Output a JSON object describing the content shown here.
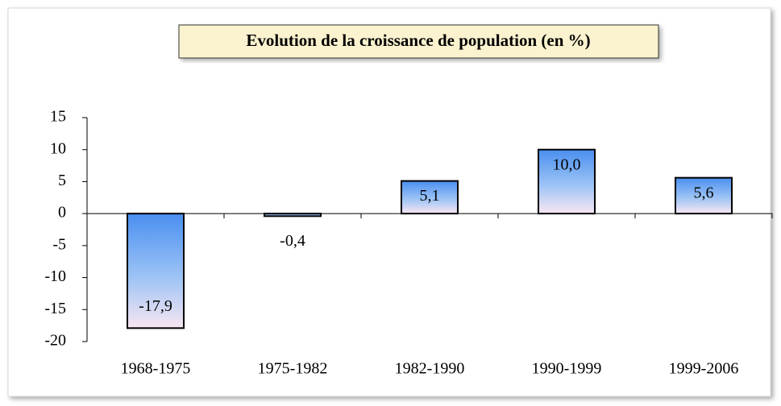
{
  "chart_data": {
    "type": "bar",
    "title": "Evolution de la croissance de population (en %)",
    "categories": [
      "1968-1975",
      "1975-1982",
      "1982-1990",
      "1990-1999",
      "1999-2006"
    ],
    "values": [
      -17.9,
      -0.4,
      5.1,
      10.0,
      5.6
    ],
    "value_labels": [
      "-17,9",
      "-0,4",
      "5,1",
      "10,0",
      "5,6"
    ],
    "ylim": [
      -20,
      15
    ],
    "yticks": [
      -20,
      -15,
      -10,
      -5,
      0,
      5,
      10,
      15
    ]
  }
}
